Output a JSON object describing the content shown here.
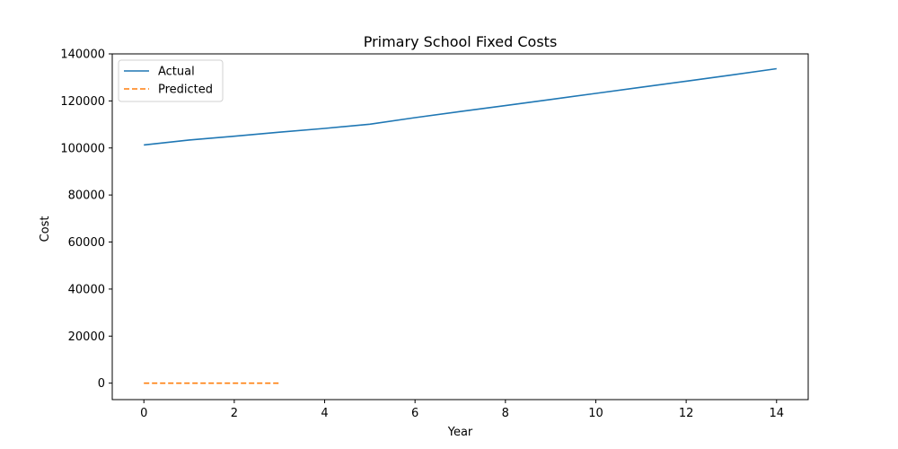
{
  "chart_data": {
    "type": "line",
    "title": "Primary School Fixed Costs",
    "xlabel": "Year",
    "ylabel": "Cost",
    "xlim": [
      -0.7,
      14.7
    ],
    "ylim": [
      -7000,
      140000
    ],
    "xticks": [
      0,
      2,
      4,
      6,
      8,
      10,
      12,
      14
    ],
    "yticks": [
      0,
      20000,
      40000,
      60000,
      80000,
      100000,
      120000,
      140000
    ],
    "grid": false,
    "legend_position": "top-left",
    "series": [
      {
        "name": "Actual",
        "color": "#1f77b4",
        "style": "solid",
        "x": [
          0,
          1,
          2,
          3,
          4,
          5,
          6,
          7,
          8,
          9,
          10,
          11,
          12,
          13,
          14
        ],
        "y": [
          101300,
          103400,
          105000,
          106700,
          108300,
          110100,
          112900,
          115500,
          118000,
          120600,
          123200,
          125800,
          128400,
          131000,
          133700
        ]
      },
      {
        "name": "Predicted",
        "color": "#ff7f0e",
        "style": "dashed",
        "x": [
          0,
          1,
          2,
          3
        ],
        "y": [
          0,
          0,
          0,
          0
        ]
      }
    ]
  }
}
